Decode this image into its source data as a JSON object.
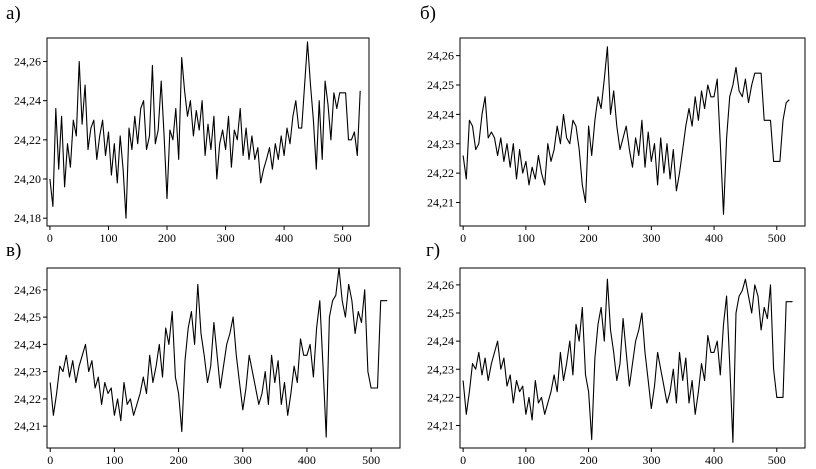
{
  "chart_data": [
    {
      "type": "line",
      "panel_label": "а)",
      "xlim": [
        -5,
        545
      ],
      "ylim": [
        24.176,
        24.272
      ],
      "xticks": [
        0,
        100,
        200,
        300,
        400,
        500
      ],
      "yticks": [
        24.18,
        24.2,
        24.22,
        24.24,
        24.26
      ],
      "xtick_labels": [
        "0",
        "100",
        "200",
        "300",
        "400",
        "500"
      ],
      "ytick_labels": [
        "24,18",
        "24,20",
        "24,22",
        "24,24",
        "24,26"
      ],
      "grid": false,
      "series": [
        {
          "x": [
            0,
            5,
            10,
            15,
            20,
            25,
            30,
            35,
            40,
            45,
            50,
            55,
            60,
            65,
            70,
            75,
            80,
            85,
            90,
            95,
            100,
            105,
            110,
            115,
            120,
            125,
            130,
            135,
            140,
            145,
            150,
            155,
            160,
            165,
            170,
            175,
            180,
            185,
            190,
            195,
            200,
            205,
            210,
            215,
            220,
            225,
            230,
            235,
            240,
            245,
            250,
            255,
            260,
            265,
            270,
            275,
            280,
            285,
            290,
            295,
            300,
            305,
            310,
            315,
            320,
            325,
            330,
            335,
            340,
            345,
            350,
            355,
            360,
            365,
            370,
            375,
            380,
            385,
            390,
            395,
            400,
            405,
            410,
            415,
            420,
            425,
            430,
            435,
            440,
            445,
            450,
            455,
            460,
            465,
            470,
            475,
            480,
            485,
            490,
            495,
            500,
            505,
            510,
            515,
            520,
            525,
            530
          ],
          "y": [
            24.2,
            24.186,
            24.236,
            24.205,
            24.232,
            24.196,
            24.218,
            24.206,
            24.23,
            24.222,
            24.26,
            24.228,
            24.248,
            24.215,
            24.226,
            24.23,
            24.21,
            24.222,
            24.23,
            24.212,
            24.224,
            24.202,
            24.218,
            24.198,
            24.222,
            24.205,
            24.18,
            24.226,
            24.215,
            24.232,
            24.218,
            24.236,
            24.24,
            24.215,
            24.222,
            24.258,
            24.218,
            24.225,
            24.25,
            24.222,
            24.19,
            24.225,
            24.22,
            24.236,
            24.21,
            24.262,
            24.245,
            24.232,
            24.24,
            24.222,
            24.235,
            24.225,
            24.24,
            24.212,
            24.228,
            24.215,
            24.232,
            24.2,
            24.218,
            24.225,
            24.215,
            24.232,
            24.206,
            24.225,
            24.22,
            24.236,
            24.212,
            24.226,
            24.21,
            24.222,
            24.21,
            24.216,
            24.198,
            24.205,
            24.21,
            24.216,
            24.205,
            24.218,
            24.21,
            24.222,
            24.212,
            24.226,
            24.218,
            24.232,
            24.24,
            24.226,
            24.226,
            24.248,
            24.27,
            24.248,
            24.23,
            24.205,
            24.24,
            24.21,
            24.25,
            24.238,
            24.22,
            24.244,
            24.236,
            24.244,
            24.244,
            24.244,
            24.22,
            24.22,
            24.224,
            24.212,
            24.245
          ]
        }
      ]
    },
    {
      "type": "line",
      "panel_label": "б)",
      "xlim": [
        -5,
        545
      ],
      "ylim": [
        24.202,
        24.266
      ],
      "xticks": [
        0,
        100,
        200,
        300,
        400,
        500
      ],
      "yticks": [
        24.21,
        24.22,
        24.23,
        24.24,
        24.25,
        24.26
      ],
      "xtick_labels": [
        "0",
        "100",
        "200",
        "300",
        "400",
        "500"
      ],
      "ytick_labels": [
        "24,21",
        "24,22",
        "24,23",
        "24,24",
        "24,25",
        "24,26"
      ],
      "grid": false,
      "series": [
        {
          "x": [
            0,
            5,
            10,
            15,
            20,
            25,
            30,
            35,
            40,
            45,
            50,
            55,
            60,
            65,
            70,
            75,
            80,
            85,
            90,
            95,
            100,
            105,
            110,
            115,
            120,
            125,
            130,
            135,
            140,
            145,
            150,
            155,
            160,
            165,
            170,
            175,
            180,
            185,
            190,
            195,
            200,
            205,
            210,
            215,
            220,
            225,
            230,
            235,
            240,
            245,
            250,
            255,
            260,
            265,
            270,
            275,
            280,
            285,
            290,
            295,
            300,
            305,
            310,
            315,
            320,
            325,
            330,
            335,
            340,
            345,
            350,
            355,
            360,
            365,
            370,
            375,
            380,
            385,
            390,
            395,
            400,
            405,
            410,
            415,
            420,
            425,
            430,
            435,
            440,
            445,
            450,
            455,
            460,
            465,
            470,
            475,
            480,
            485,
            490,
            495,
            500,
            505,
            510,
            515,
            520
          ],
          "y": [
            24.226,
            24.218,
            24.238,
            24.236,
            24.228,
            24.23,
            24.24,
            24.246,
            24.232,
            24.234,
            24.232,
            24.226,
            24.232,
            24.224,
            24.23,
            24.222,
            24.23,
            24.218,
            24.228,
            24.22,
            24.224,
            24.216,
            24.222,
            24.218,
            24.226,
            24.22,
            24.216,
            24.23,
            24.224,
            24.228,
            24.236,
            24.23,
            24.24,
            24.232,
            24.23,
            24.238,
            24.236,
            24.228,
            24.216,
            24.21,
            24.236,
            24.226,
            24.238,
            24.246,
            24.242,
            24.252,
            24.263,
            24.24,
            24.248,
            24.236,
            24.228,
            24.232,
            24.236,
            24.228,
            24.222,
            24.232,
            24.226,
            24.238,
            24.222,
            24.234,
            24.224,
            24.23,
            24.216,
            24.232,
            24.22,
            24.23,
            24.218,
            24.228,
            24.214,
            24.22,
            24.228,
            24.236,
            24.242,
            24.236,
            24.246,
            24.238,
            24.248,
            24.242,
            24.25,
            24.246,
            24.246,
            24.252,
            24.23,
            24.206,
            24.232,
            24.246,
            24.25,
            24.256,
            24.248,
            24.246,
            24.252,
            24.244,
            24.25,
            24.254,
            24.254,
            24.254,
            24.238,
            24.238,
            24.238,
            24.224,
            24.224,
            24.224,
            24.238,
            24.244,
            24.245
          ]
        }
      ]
    },
    {
      "type": "line",
      "panel_label": "в)",
      "xlim": [
        -5,
        545
      ],
      "ylim": [
        24.202,
        24.268
      ],
      "xticks": [
        0,
        100,
        200,
        300,
        400,
        500
      ],
      "yticks": [
        24.21,
        24.22,
        24.23,
        24.24,
        24.25,
        24.26
      ],
      "xtick_labels": [
        "0",
        "100",
        "200",
        "300",
        "400",
        "500"
      ],
      "ytick_labels": [
        "24,21",
        "24,22",
        "24,23",
        "24,24",
        "24,25",
        "24,26"
      ],
      "grid": false,
      "series": [
        {
          "x": [
            0,
            5,
            10,
            15,
            20,
            25,
            30,
            35,
            40,
            45,
            50,
            55,
            60,
            65,
            70,
            75,
            80,
            85,
            90,
            95,
            100,
            105,
            110,
            115,
            120,
            125,
            130,
            135,
            140,
            145,
            150,
            155,
            160,
            165,
            170,
            175,
            180,
            185,
            190,
            195,
            200,
            205,
            210,
            215,
            220,
            225,
            230,
            235,
            240,
            245,
            250,
            255,
            260,
            265,
            270,
            275,
            280,
            285,
            290,
            295,
            300,
            305,
            310,
            315,
            320,
            325,
            330,
            335,
            340,
            345,
            350,
            355,
            360,
            365,
            370,
            375,
            380,
            385,
            390,
            395,
            400,
            405,
            410,
            415,
            420,
            425,
            430,
            435,
            440,
            445,
            450,
            455,
            460,
            465,
            470,
            475,
            480,
            485,
            490,
            495,
            500,
            505,
            510,
            515,
            520,
            525
          ],
          "y": [
            24.226,
            24.214,
            24.222,
            24.232,
            24.23,
            24.236,
            24.228,
            24.234,
            24.226,
            24.232,
            24.236,
            24.24,
            24.23,
            24.234,
            24.224,
            24.228,
            24.218,
            24.226,
            24.222,
            24.224,
            24.214,
            24.22,
            24.212,
            24.226,
            24.218,
            24.22,
            24.214,
            24.218,
            24.222,
            24.228,
            24.222,
            24.236,
            24.226,
            24.232,
            24.24,
            24.228,
            24.246,
            24.24,
            24.252,
            24.228,
            24.222,
            24.208,
            24.234,
            24.246,
            24.252,
            24.24,
            24.262,
            24.244,
            24.236,
            24.226,
            24.232,
            24.248,
            24.236,
            24.224,
            24.232,
            24.24,
            24.244,
            24.25,
            24.236,
            24.226,
            24.216,
            24.224,
            24.236,
            24.23,
            24.224,
            24.218,
            24.222,
            24.23,
            24.218,
            24.236,
            24.226,
            24.234,
            24.218,
            24.226,
            24.214,
            24.222,
            24.232,
            24.226,
            24.242,
            24.236,
            24.236,
            24.24,
            24.228,
            24.246,
            24.256,
            24.232,
            24.206,
            24.25,
            24.256,
            24.258,
            24.268,
            24.256,
            24.25,
            24.262,
            24.256,
            24.244,
            24.252,
            24.248,
            24.26,
            24.23,
            24.224,
            24.224,
            24.224,
            24.256,
            24.256,
            24.256
          ]
        }
      ]
    },
    {
      "type": "line",
      "panel_label": "г)",
      "xlim": [
        -5,
        545
      ],
      "ylim": [
        24.202,
        24.266
      ],
      "xticks": [
        0,
        100,
        200,
        300,
        400,
        500
      ],
      "yticks": [
        24.21,
        24.22,
        24.23,
        24.24,
        24.25,
        24.26
      ],
      "xtick_labels": [
        "0",
        "100",
        "200",
        "300",
        "400",
        "500"
      ],
      "ytick_labels": [
        "24,21",
        "24,22",
        "24,23",
        "24,24",
        "24,25",
        "24,26"
      ],
      "grid": false,
      "series": [
        {
          "x": [
            0,
            5,
            10,
            15,
            20,
            25,
            30,
            35,
            40,
            45,
            50,
            55,
            60,
            65,
            70,
            75,
            80,
            85,
            90,
            95,
            100,
            105,
            110,
            115,
            120,
            125,
            130,
            135,
            140,
            145,
            150,
            155,
            160,
            165,
            170,
            175,
            180,
            185,
            190,
            195,
            200,
            205,
            210,
            215,
            220,
            225,
            230,
            235,
            240,
            245,
            250,
            255,
            260,
            265,
            270,
            275,
            280,
            285,
            290,
            295,
            300,
            305,
            310,
            315,
            320,
            325,
            330,
            335,
            340,
            345,
            350,
            355,
            360,
            365,
            370,
            375,
            380,
            385,
            390,
            395,
            400,
            405,
            410,
            415,
            420,
            425,
            430,
            435,
            440,
            445,
            450,
            455,
            460,
            465,
            470,
            475,
            480,
            485,
            490,
            495,
            500,
            505,
            510,
            515,
            520,
            525
          ],
          "y": [
            24.226,
            24.214,
            24.222,
            24.232,
            24.23,
            24.236,
            24.228,
            24.234,
            24.226,
            24.232,
            24.236,
            24.24,
            24.23,
            24.234,
            24.224,
            24.228,
            24.218,
            24.226,
            24.222,
            24.224,
            24.214,
            24.22,
            24.212,
            24.226,
            24.218,
            24.22,
            24.214,
            24.218,
            24.222,
            24.228,
            24.222,
            24.236,
            24.226,
            24.232,
            24.24,
            24.228,
            24.246,
            24.24,
            24.252,
            24.228,
            24.222,
            24.205,
            24.234,
            24.246,
            24.252,
            24.24,
            24.262,
            24.244,
            24.236,
            24.226,
            24.232,
            24.248,
            24.236,
            24.224,
            24.232,
            24.24,
            24.244,
            24.25,
            24.236,
            24.226,
            24.216,
            24.224,
            24.236,
            24.23,
            24.224,
            24.218,
            24.222,
            24.23,
            24.218,
            24.236,
            24.226,
            24.234,
            24.218,
            24.226,
            24.214,
            24.222,
            24.232,
            24.226,
            24.242,
            24.236,
            24.236,
            24.24,
            24.228,
            24.246,
            24.256,
            24.232,
            24.204,
            24.25,
            24.256,
            24.258,
            24.262,
            24.256,
            24.25,
            24.26,
            24.256,
            24.244,
            24.252,
            24.248,
            24.26,
            24.23,
            24.22,
            24.22,
            24.22,
            24.254,
            24.254,
            24.254
          ]
        }
      ]
    }
  ]
}
